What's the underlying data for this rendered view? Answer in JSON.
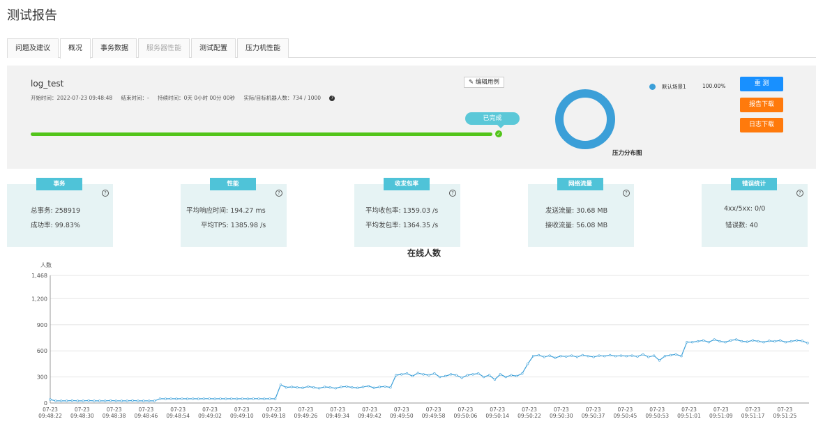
{
  "page": {
    "title": "测试报告"
  },
  "tabs": [
    {
      "label": "问题及建议",
      "state": "normal"
    },
    {
      "label": "概况",
      "state": "active"
    },
    {
      "label": "事务数据",
      "state": "normal"
    },
    {
      "label": "服务器性能",
      "state": "disabled"
    },
    {
      "label": "测试配置",
      "state": "normal"
    },
    {
      "label": "压力机性能",
      "state": "normal"
    }
  ],
  "summary": {
    "task_name": "log_test",
    "start_time": "开始时间：2022-07-23 09:48:48",
    "end_time": "结束时间：-",
    "duration": "持续时间：0天 0小时 00分 00秒",
    "machines": "实际/目标机器人数：734 / 1000",
    "help_glyph": "?",
    "edit_label": "编辑用例",
    "edit_icon": "pencil-icon",
    "status_label": "已完成",
    "progress": 1.0,
    "donut_title": "压力分布图",
    "legend": {
      "label": "默认场景1",
      "percent": "100.00%",
      "color": "#3b9fd8"
    },
    "buttons": {
      "rerun": "重 测",
      "download_report": "报告下载",
      "download_log": "日志下载"
    }
  },
  "stats": [
    {
      "tag": "事务",
      "lines": [
        "总事务: 258919",
        "成功率: 99.83%"
      ]
    },
    {
      "tag": "性能",
      "lines": [
        "平均响应时间: 194.27 ms",
        "平均TPS: 1385.98 /s"
      ]
    },
    {
      "tag": "收发包率",
      "lines": [
        "平均收包率: 1359.03 /s",
        "平均发包率: 1364.35 /s"
      ]
    },
    {
      "tag": "网络流量",
      "lines": [
        "发送流量: 30.68 MB",
        "接收流量: 56.08 MB"
      ]
    },
    {
      "tag": "错误统计",
      "lines": [
        "4xx/5xx: 0/0",
        "错误数: 40"
      ]
    }
  ],
  "colors": {
    "accent": "#1890ff",
    "orange": "#ff7a0c",
    "teal": "#4fc3d8",
    "line": "#3b9fd8",
    "progress": "#52c41a"
  },
  "chart_data": {
    "type": "line",
    "title": "在线人数",
    "ylabel": "人数",
    "ylim": [
      0,
      1468
    ],
    "yticks": [
      0,
      300,
      600,
      900,
      "1,200",
      "1,468"
    ],
    "x_dates": "07-23",
    "x_tick_labels": [
      "09:48:22",
      "09:48:30",
      "09:48:38",
      "09:48:46",
      "09:48:54",
      "09:49:02",
      "09:49:10",
      "09:49:18",
      "09:49:26",
      "09:49:34",
      "09:49:42",
      "09:49:50",
      "09:49:58",
      "09:50:06",
      "09:50:14",
      "09:50:22",
      "09:50:30",
      "09:50:37",
      "09:50:45",
      "09:50:53",
      "09:51:01",
      "09:51:09",
      "09:51:17",
      "09:51:25"
    ],
    "grid": true,
    "series": [
      {
        "values": [
          40,
          25,
          25,
          25,
          28,
          25,
          25,
          28,
          25,
          25,
          25,
          28,
          25,
          25,
          25,
          28,
          25,
          25,
          25,
          25,
          50,
          48,
          50,
          48,
          50,
          48,
          50,
          48,
          50,
          50,
          48,
          50,
          48,
          50,
          48,
          50,
          48,
          50,
          50,
          48,
          50,
          48,
          210,
          180,
          185,
          180,
          175,
          190,
          180,
          170,
          185,
          180,
          170,
          185,
          190,
          180,
          175,
          185,
          195,
          175,
          185,
          190,
          180,
          320,
          330,
          340,
          310,
          345,
          330,
          320,
          340,
          300,
          310,
          330,
          320,
          290,
          320,
          330,
          340,
          300,
          320,
          270,
          330,
          300,
          320,
          310,
          340,
          450,
          540,
          550,
          530,
          545,
          520,
          540,
          535,
          545,
          530,
          550,
          540,
          530,
          545,
          540,
          550,
          540,
          545,
          540,
          545,
          535,
          560,
          530,
          545,
          490,
          540,
          550,
          560,
          540,
          700,
          700,
          710,
          720,
          700,
          730,
          710,
          700,
          720,
          730,
          710,
          705,
          720,
          710,
          700,
          715,
          710,
          720,
          700,
          710,
          720,
          715,
          690
        ]
      }
    ]
  }
}
